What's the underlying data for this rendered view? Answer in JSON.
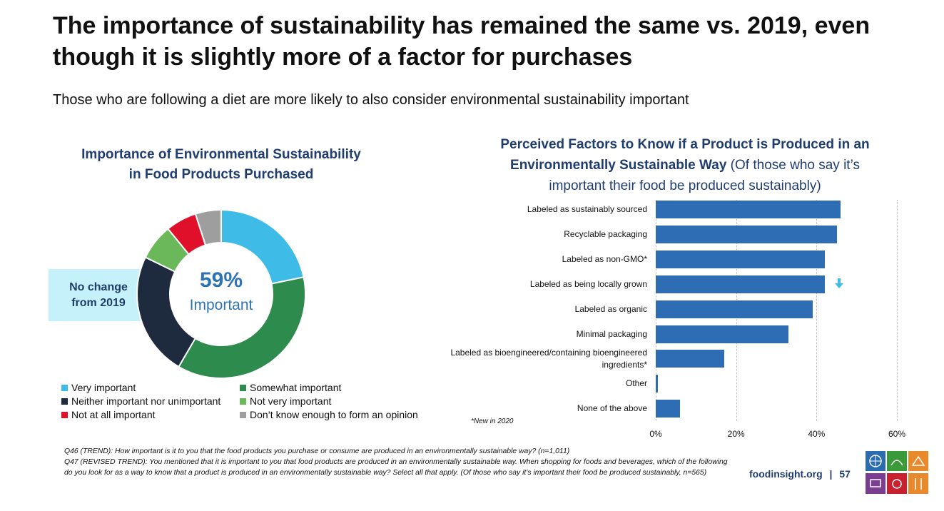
{
  "title": "The importance of sustainability has remained the same vs. 2019, even though it is slightly more of a factor for purchases",
  "subtitle": "Those who are following a diet are more likely to also consider environmental sustainability important",
  "callout": "No change from 2019",
  "new_note": "*New in 2020",
  "footnotes": [
    "Q46 (TREND): How important is it to you that the food products you purchase or consume are produced in an environmentally sustainable way? (n=1,011)",
    "Q47 (REVISED TREND): You mentioned that it is important to you that food products are produced in an environmentally sustainable way. When shopping for foods and beverages, which of the following do you look for as a way to know that a product is produced in an environmentally sustainable way? Select all that apply. (Of those who say it’s important their food be produced sustainably, n=565)"
  ],
  "footer": {
    "site": "foodinsight.org",
    "separator": "|",
    "page": "57"
  },
  "chart_data": [
    {
      "type": "pie",
      "title_line1": "Importance of Environmental Sustainability",
      "title_line2": "in Food Products Purchased",
      "center_value": "59%",
      "center_label": "Important",
      "categories": [
        "Very important",
        "Somewhat important",
        "Neither important nor unimportant",
        "Not very important",
        "Not at all important",
        "Don’t know enough to form an opinion"
      ],
      "values": [
        22,
        37,
        24,
        7,
        6,
        5
      ],
      "colors": [
        "#3fbbe8",
        "#2e8b4e",
        "#1e2a3d",
        "#6ab85a",
        "#e0102a",
        "#9e9e9e"
      ],
      "legend_position": "bottom"
    },
    {
      "type": "bar",
      "orientation": "horizontal",
      "title_bold": "Perceived Factors to Know if a Product is Produced in an Environmentally Sustainable Way",
      "title_bold_line1": "Perceived Factors to Know if a Product is Produced in an",
      "title_bold_line2": "Environmentally Sustainable Way",
      "title_normal_line2": " (Of those who say it’s",
      "title_normal_line3": "important their food be produced sustainably)",
      "categories": [
        [
          "Labeled as sustainably sourced"
        ],
        [
          "Recyclable packaging"
        ],
        [
          "Labeled as non-GMO*"
        ],
        [
          "Labeled as being locally grown"
        ],
        [
          "Labeled as organic"
        ],
        [
          "Minimal packaging"
        ],
        [
          "Labeled as bioengineered/containing bioengineered",
          "ingredients*"
        ],
        [
          "Other"
        ],
        [
          "None of the above"
        ]
      ],
      "values": [
        46,
        45,
        42,
        42,
        39,
        33,
        17,
        0.5,
        6
      ],
      "significant_decrease": [
        false,
        false,
        false,
        true,
        false,
        false,
        false,
        false,
        false
      ],
      "xlim": [
        0,
        60
      ],
      "xticks": [
        "0%",
        "20%",
        "40%",
        "60%"
      ],
      "grid": true,
      "bar_color": "#2e6db4"
    }
  ]
}
